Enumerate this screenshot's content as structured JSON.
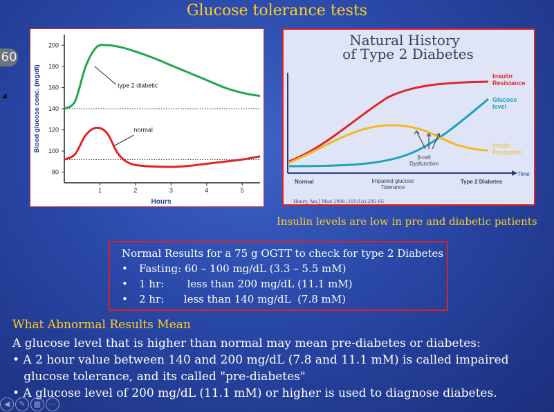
{
  "slide": {
    "title": "Glucose tolerance tests",
    "slide_number": "60",
    "yellow_note": "Insulin levels are low in pre and diabetic patients"
  },
  "left_chart": {
    "y_axis_label": "Blood glucose conc. (mg/dl)",
    "x_axis_label": "Hours",
    "y_ticks": [
      "200",
      "180",
      "160",
      "140",
      "120",
      "100",
      "80"
    ],
    "x_ticks": [
      "1",
      "2",
      "3",
      "4",
      "5"
    ],
    "label_diabetic": "type 2 diabetic",
    "label_normal": "normal",
    "colors": {
      "diabetic": "#1fa64a",
      "normal": "#e02222",
      "dotted": "#333333"
    }
  },
  "chart_data": {
    "type": "line",
    "title": "",
    "xlabel": "Hours",
    "ylabel": "Blood glucose conc. (mg/dl)",
    "xlim": [
      0,
      5.5
    ],
    "ylim": [
      70,
      210
    ],
    "series": [
      {
        "name": "type 2 diabetic",
        "x": [
          0,
          0.3,
          0.6,
          0.9,
          1.2,
          1.6,
          2,
          2.5,
          3,
          3.5,
          4,
          4.5,
          5,
          5.5
        ],
        "y": [
          140,
          147,
          180,
          198,
          200,
          198,
          194,
          188,
          181,
          174,
          167,
          160,
          155,
          152
        ]
      },
      {
        "name": "normal",
        "x": [
          0,
          0.3,
          0.6,
          0.9,
          1.2,
          1.5,
          1.8,
          2.2,
          3,
          3.5,
          4,
          4.5,
          5,
          5.5
        ],
        "y": [
          92,
          97,
          115,
          122,
          117,
          98,
          89,
          86,
          85,
          86,
          88,
          90,
          92,
          95
        ]
      }
    ],
    "reference_lines": [
      140,
      92
    ]
  },
  "right_chart": {
    "title_line1": "Natural History",
    "title_line2": "of Type 2 Diabetes",
    "label_resistance_1": "Insulin",
    "label_resistance_2": "Resistance",
    "label_glucose_1": "Glucose",
    "label_glucose_2": "level",
    "label_production_1": "Insulin",
    "label_production_2": "Production",
    "label_time": "Time",
    "label_beta_1": "β-cell",
    "label_beta_2": "Dysfunction",
    "stage_normal": "Normal",
    "stage_igt_1": "Impaired glucose",
    "stage_igt_2": "Tolerance",
    "stage_t2d": "Type 2 Diabetes",
    "citation": "Henry, Am J Med 1998 ;105(1A):20S-6S",
    "colors": {
      "resistance": "#e0242a",
      "glucose": "#1aa3b8",
      "production": "#f2b81d"
    }
  },
  "results": {
    "heading": "Normal Results for a 75 g OGTT to check for type 2 Diabetes",
    "rows": [
      {
        "bullet": "•",
        "text": "Fasting: 60 – 100 mg/dL (3.3 – 5.5 mM)"
      },
      {
        "bullet": "•",
        "text": "1 hr:       less than 200 mg/dL (11.1 mM)"
      },
      {
        "bullet": "•",
        "text": "2 hr:      less than 140 mg/dL  (7.8 mM)"
      }
    ]
  },
  "abnormal": {
    "title": "What Abnormal Results Mean",
    "line1": "A glucose level that is higher than normal may mean pre-diabetes or diabetes:",
    "line2": "• A 2 hour value between 140 and 200 mg/dL (7.8 and 11.1 mM) is called impaired",
    "line3": "   glucose tolerance, and its called \"pre-diabetes\"",
    "line4": "• A glucose level of 200 mg/dL (11.1 mM) or higher is used to diagnose diabetes."
  },
  "nav": {
    "icons": [
      "back-icon",
      "pen-icon",
      "slides-icon",
      "more-icon"
    ]
  }
}
